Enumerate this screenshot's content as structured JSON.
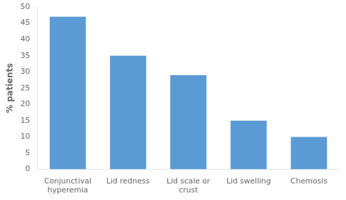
{
  "chart_data": {
    "type": "bar",
    "categories": [
      "Conjunctival\nhyperemia",
      "Lid redness",
      "Lid scale or\ncrust",
      "Lid swelling",
      "Chemosis"
    ],
    "values": [
      47,
      35,
      29,
      15,
      10
    ],
    "color": "#5b9bd5",
    "ylabel": "% patients",
    "ylim": [
      0,
      50
    ],
    "yticks": [
      0,
      5,
      10,
      15,
      20,
      25,
      30,
      35,
      40,
      45,
      50
    ],
    "grid": false
  }
}
